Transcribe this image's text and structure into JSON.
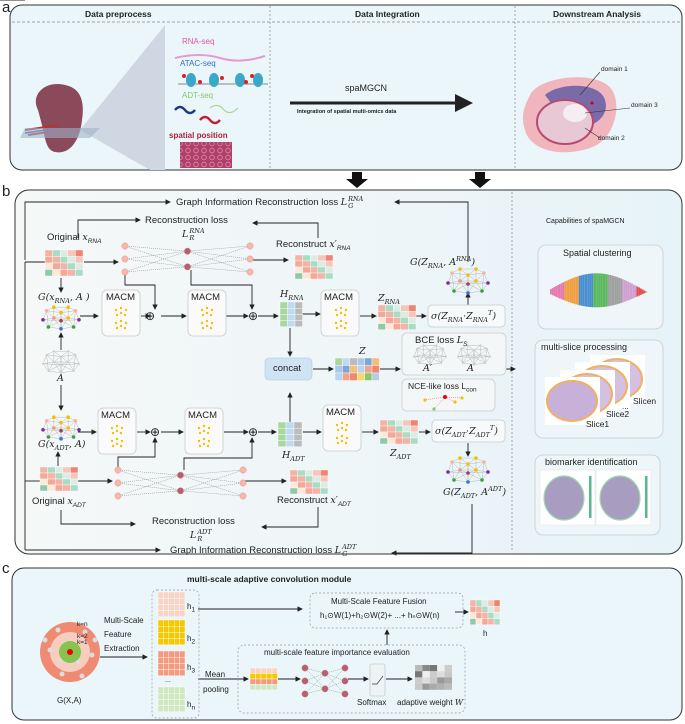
{
  "colors": {
    "panel_bg": "#eaf6f9",
    "panel_b_left_bg": "#f4f8f8",
    "panel_b_right_bg": "#e3f2f8",
    "concat_fill": "#cfe3f3",
    "rna_pink": "#e0579f",
    "atac_blue": "#3b6fc4",
    "adt_green": "#86c96b",
    "spatial_red": "#a8243a"
  },
  "panel_a": {
    "label": "a",
    "headers": [
      "Data preprocess",
      "Data Integration",
      "Downstream Analysis"
    ],
    "omics": [
      "RNA-seq",
      "ATAC-seq",
      "ADT-seq",
      "spatial position"
    ],
    "method": "spaMGCN",
    "arrow_caption": "Integration of spatial multi-omics data",
    "domains": [
      "domain 1",
      "domain 3",
      "domain 2"
    ]
  },
  "panel_b": {
    "label": "b",
    "graph_loss_rna": {
      "text": "Graph Information Reconstruction  loss ",
      "L": "L",
      "sub": "G",
      "sup": "RNA"
    },
    "recon_loss_rna": {
      "text": "Reconstruction loss",
      "L": "L",
      "sub": "R",
      "sup": "RNA"
    },
    "original_rna": {
      "text": "Original ",
      "x": "x",
      "sub": "RNA"
    },
    "reconstruct_rna": {
      "text": "Reconstruct ",
      "x": "x′",
      "sub": "RNA"
    },
    "g_x_rna": {
      "pre": "G(x",
      "sub": "RNA",
      "post": ", A )"
    },
    "macm": "MACM",
    "h_rna": {
      "H": "H",
      "sub": "RNA"
    },
    "z_rna": {
      "Z": "Z",
      "sub": "RNA"
    },
    "sigma_rna": {
      "pre": "σ(Z",
      "sub1": "RNA",
      "mid": "·Z",
      "sub2": "RNA",
      "sup": "T",
      "post": ")"
    },
    "g_z_rna": {
      "pre": "G(Z",
      "sub": "RNA",
      "mid": ", A",
      "sup": "RNA",
      "post": ")"
    },
    "bce_loss": {
      "text": "BCE  loss ",
      "L": "L",
      "sub": "S"
    },
    "a_prime": "A′",
    "a": "A",
    "concat": "concat",
    "z": "Z",
    "nce_loss": {
      "text": "NCE-like loss L",
      "sub": "con"
    },
    "g_x_adt": {
      "pre": "G(x",
      "sub": "ADT",
      "post": ", A)"
    },
    "h_adt": {
      "H": "H",
      "sub": "ADT"
    },
    "z_adt": {
      "Z": "Z",
      "sub": "ADT"
    },
    "sigma_adt": {
      "pre": "σ(Z",
      "sub1": "ADT",
      "mid": "·Z",
      "sub2": "ADT",
      "sup": "T",
      "post": ")"
    },
    "g_z_adt": {
      "pre": "G(Z",
      "sub": "ADT",
      "mid": ", A",
      "sup": "ADT",
      "post": ")"
    },
    "original_adt": {
      "text": "Original ",
      "x": "x",
      "sub": "ADT"
    },
    "reconstruct_adt": {
      "text": "Reconstruct ",
      "x": "x′",
      "sub": "ADT"
    },
    "recon_loss_adt": {
      "text": "Reconstruction loss",
      "L": "L",
      "sub": "R",
      "sup": "ADT"
    },
    "graph_loss_adt": {
      "text": "Graph Information Reconstruction  loss ",
      "L": "L",
      "sub": "G",
      "sup": "ADT"
    },
    "capabilities": {
      "title": "Capabilities of  spaMGCN",
      "spatial_clustering": "Spatial clustering",
      "multi_slice": "multi-slice processing",
      "slices": [
        "Slicen",
        "...",
        "Slice2",
        "Slice1"
      ],
      "biomarker": "biomarker identification"
    }
  },
  "panel_c": {
    "label": "c",
    "title": "multi-scale adaptive convolution module",
    "k_labels": [
      "k=n",
      "k=2",
      "k=1"
    ],
    "graph_label": "G(X,A)",
    "extraction": [
      "Multi-Scale",
      "Feature",
      "Extraction"
    ],
    "features": [
      {
        "h": "h",
        "sub": "1"
      },
      {
        "h": "h",
        "sub": "2"
      },
      {
        "h": "h",
        "sub": "3"
      },
      {
        "h": "h",
        "sub": "n"
      }
    ],
    "ellipsis": "...",
    "fusion_title": "Multi-Scale Feature Fusion",
    "fusion_formula": "h₁⊙W(1)+h₂⊙W(2)+  ...+ hₙ⊙W(n)",
    "output_label": "h",
    "evaluation_title": "multi-scale feature importance evaluation",
    "mean_pooling": [
      "Mean",
      "pooling"
    ],
    "softmax": "Softmax",
    "adaptive_weight": {
      "text": "adaptive weight ",
      "W": "W"
    }
  }
}
